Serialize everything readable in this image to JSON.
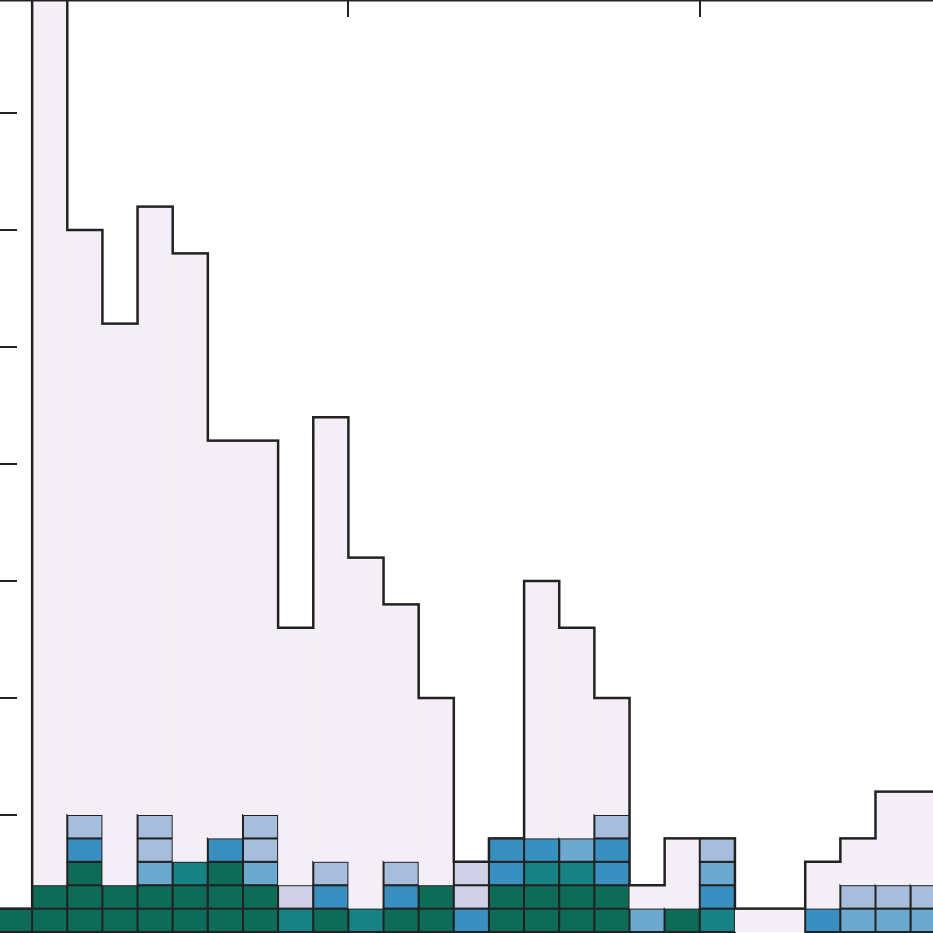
{
  "chart_data": {
    "type": "bar",
    "stacked": true,
    "histogram": true,
    "title": "",
    "xlabel": "",
    "ylabel": "",
    "num_bins": 27,
    "ylim": [
      0,
      40
    ],
    "yticks": [
      5,
      10,
      15,
      20,
      25,
      30,
      35
    ],
    "series": [
      {
        "color": "#0d6b57",
        "values": [
          1,
          2,
          3,
          2,
          2,
          2,
          3,
          2,
          0,
          1,
          0,
          1,
          2,
          0,
          2,
          2,
          2,
          2,
          0,
          1,
          0,
          0,
          0,
          0,
          0,
          0,
          0
        ]
      },
      {
        "color": "#178283",
        "values": [
          0,
          0,
          0,
          0,
          0,
          1,
          0,
          0,
          1,
          0,
          1,
          0,
          0,
          0,
          0,
          1,
          1,
          0,
          0,
          0,
          1,
          0,
          0,
          0,
          0,
          0,
          0
        ]
      },
      {
        "color": "#3a8fc1",
        "values": [
          0,
          0,
          1,
          0,
          0,
          0,
          1,
          0,
          0,
          1,
          0,
          1,
          0,
          1,
          2,
          1,
          0,
          2,
          0,
          0,
          1,
          0,
          0,
          1,
          0,
          0,
          0
        ]
      },
      {
        "color": "#6ca9cf",
        "values": [
          0,
          0,
          0,
          0,
          1,
          0,
          0,
          1,
          0,
          0,
          0,
          0,
          0,
          0,
          0,
          0,
          1,
          0,
          1,
          0,
          1,
          0,
          0,
          0,
          1,
          1,
          1
        ]
      },
      {
        "color": "#a6bddb",
        "values": [
          0,
          0,
          1,
          0,
          2,
          0,
          0,
          2,
          0,
          1,
          0,
          1,
          0,
          0,
          0,
          0,
          0,
          1,
          0,
          0,
          1,
          0,
          0,
          0,
          1,
          1,
          1
        ]
      },
      {
        "color": "#d0d1e6",
        "values": [
          0,
          0,
          0,
          0,
          0,
          0,
          0,
          0,
          1,
          0,
          0,
          0,
          0,
          2,
          0,
          0,
          0,
          0,
          0,
          0,
          0,
          0,
          0,
          0,
          0,
          0,
          0
        ]
      },
      {
        "color": "#f4eef6",
        "values": [
          0,
          38,
          25,
          24,
          26,
          26,
          17,
          16,
          11,
          19,
          15,
          11,
          8,
          0,
          0,
          11,
          9,
          5,
          1,
          3,
          0,
          1,
          1,
          2,
          2,
          4,
          4
        ]
      }
    ]
  }
}
